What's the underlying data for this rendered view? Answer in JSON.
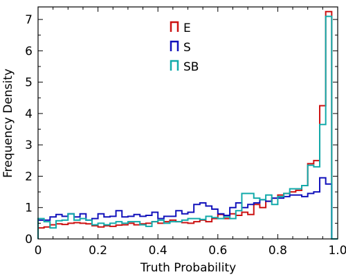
{
  "chart_data": {
    "type": "histogram",
    "xlabel": "Truth Probability",
    "ylabel": "Frequency Density",
    "xlim": [
      0,
      1
    ],
    "ylim": [
      0,
      7.4
    ],
    "xticks": [
      "0",
      "0.2",
      "0.4",
      "0.6",
      "0.8",
      "1.0"
    ],
    "yticks": [
      "0",
      "1",
      "2",
      "3",
      "4",
      "5",
      "6",
      "7"
    ],
    "bin_width": 0.02,
    "legend_placement": "top-center",
    "grid": false,
    "series": [
      {
        "name": "E",
        "color": "#cc1111",
        "values": [
          0.35,
          0.38,
          0.45,
          0.48,
          0.46,
          0.5,
          0.52,
          0.5,
          0.48,
          0.42,
          0.38,
          0.42,
          0.4,
          0.44,
          0.45,
          0.5,
          0.45,
          0.48,
          0.5,
          0.55,
          0.5,
          0.55,
          0.6,
          0.55,
          0.52,
          0.5,
          0.55,
          0.6,
          0.55,
          0.65,
          0.78,
          0.65,
          0.8,
          0.75,
          0.85,
          0.78,
          1.1,
          1.0,
          1.2,
          1.3,
          1.4,
          1.45,
          1.5,
          1.55,
          1.7,
          2.4,
          2.5,
          4.25,
          7.25,
          0.0
        ]
      },
      {
        "name": "S",
        "color": "#1111bb",
        "values": [
          0.6,
          0.6,
          0.7,
          0.78,
          0.72,
          0.8,
          0.7,
          0.8,
          0.6,
          0.65,
          0.8,
          0.7,
          0.72,
          0.9,
          0.7,
          0.72,
          0.78,
          0.72,
          0.75,
          0.85,
          0.65,
          0.72,
          0.72,
          0.9,
          0.8,
          0.85,
          1.1,
          1.15,
          1.05,
          0.95,
          0.8,
          0.75,
          1.0,
          1.15,
          1.0,
          1.1,
          1.15,
          1.25,
          1.2,
          1.3,
          1.3,
          1.35,
          1.4,
          1.4,
          1.35,
          1.45,
          1.5,
          1.95,
          1.75,
          0.0
        ]
      },
      {
        "name": "SB",
        "color": "#11aaaa",
        "values": [
          0.65,
          0.55,
          0.35,
          0.58,
          0.6,
          0.8,
          0.6,
          0.65,
          0.6,
          0.45,
          0.5,
          0.45,
          0.5,
          0.55,
          0.5,
          0.55,
          0.55,
          0.45,
          0.4,
          0.55,
          0.6,
          0.5,
          0.55,
          0.55,
          0.6,
          0.65,
          0.65,
          0.62,
          0.72,
          0.68,
          0.65,
          0.7,
          0.65,
          0.9,
          1.45,
          1.45,
          1.3,
          1.25,
          1.4,
          1.1,
          1.35,
          1.45,
          1.6,
          1.6,
          1.7,
          2.35,
          2.3,
          3.65,
          7.1,
          0.0
        ]
      }
    ]
  }
}
